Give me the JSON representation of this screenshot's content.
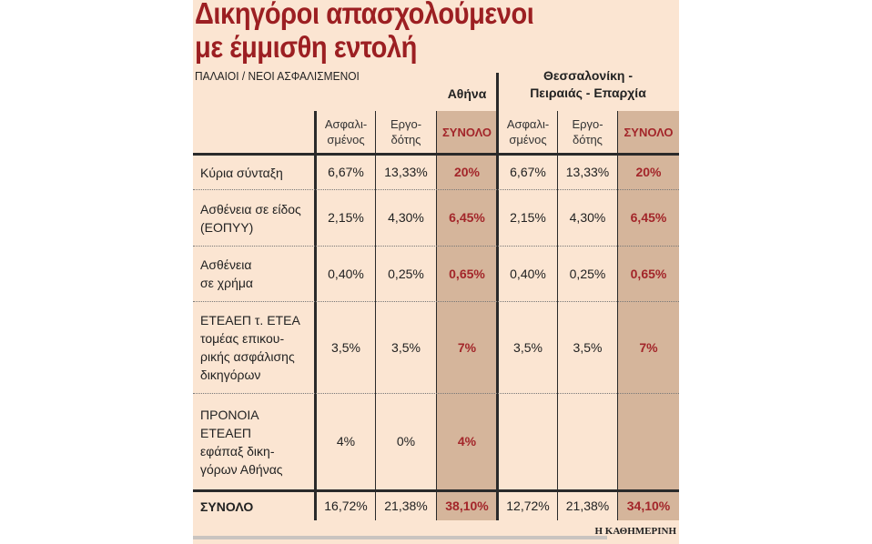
{
  "title_line1": "Δικηγόροι απασχολούμενοι",
  "title_line2": "με έμμισθη εντολή",
  "subtitle": "ΠΑΛΑΙΟΙ / ΝΕΟΙ ΑΣΦΑΛΙΣΜΕΝΟΙ",
  "groups": {
    "athens": "Αθήνα",
    "other_line1": "Θεσσαλονίκη -",
    "other_line2": "Πειραιάς - Επαρχία"
  },
  "columns": [
    {
      "l1": "Ασφαλι-",
      "l2": "σμένος"
    },
    {
      "l1": "Εργο-",
      "l2": "δότης"
    },
    {
      "l1": "ΣΥΝΟΛΟ",
      "l2": ""
    },
    {
      "l1": "Ασφαλι-",
      "l2": "σμένος"
    },
    {
      "l1": "Εργο-",
      "l2": "δότης"
    },
    {
      "l1": "ΣΥΝΟΛΟ",
      "l2": ""
    }
  ],
  "rows": [
    {
      "label": [
        "Κύρια σύνταξη"
      ],
      "values": [
        "6,67%",
        "13,33%",
        "20%",
        "6,67%",
        "13,33%",
        "20%"
      ]
    },
    {
      "label": [
        "Ασθένεια σε είδος",
        "(ΕΟΠΥΥ)"
      ],
      "values": [
        "2,15%",
        "4,30%",
        "6,45%",
        "2,15%",
        "4,30%",
        "6,45%"
      ]
    },
    {
      "label": [
        "Ασθένεια",
        "σε χρήμα"
      ],
      "values": [
        "0,40%",
        "0,25%",
        "0,65%",
        "0,40%",
        "0,25%",
        "0,65%"
      ]
    },
    {
      "label": [
        "ΕΤΕΑΕΠ τ. ΕΤΕΑ",
        "τομέας επικου-",
        "ρικής ασφάλισης",
        "δικηγόρων"
      ],
      "values": [
        "3,5%",
        "3,5%",
        "7%",
        "3,5%",
        "3,5%",
        "7%"
      ]
    },
    {
      "label": [
        "ΠΡΟΝΟΙΑ",
        "ΕΤΕΑΕΠ",
        "εφάπαξ δικη-",
        "γόρων Αθήνας"
      ],
      "values": [
        "4%",
        "0%",
        "4%",
        "",
        "",
        ""
      ]
    }
  ],
  "total": {
    "label": "ΣΥΝΟΛΟ",
    "values": [
      "16,72%",
      "21,38%",
      "38,10%",
      "12,72%",
      "21,38%",
      "34,10%"
    ]
  },
  "source": "Η ΚΑΘΗΜΕΡΙΝΗ"
}
